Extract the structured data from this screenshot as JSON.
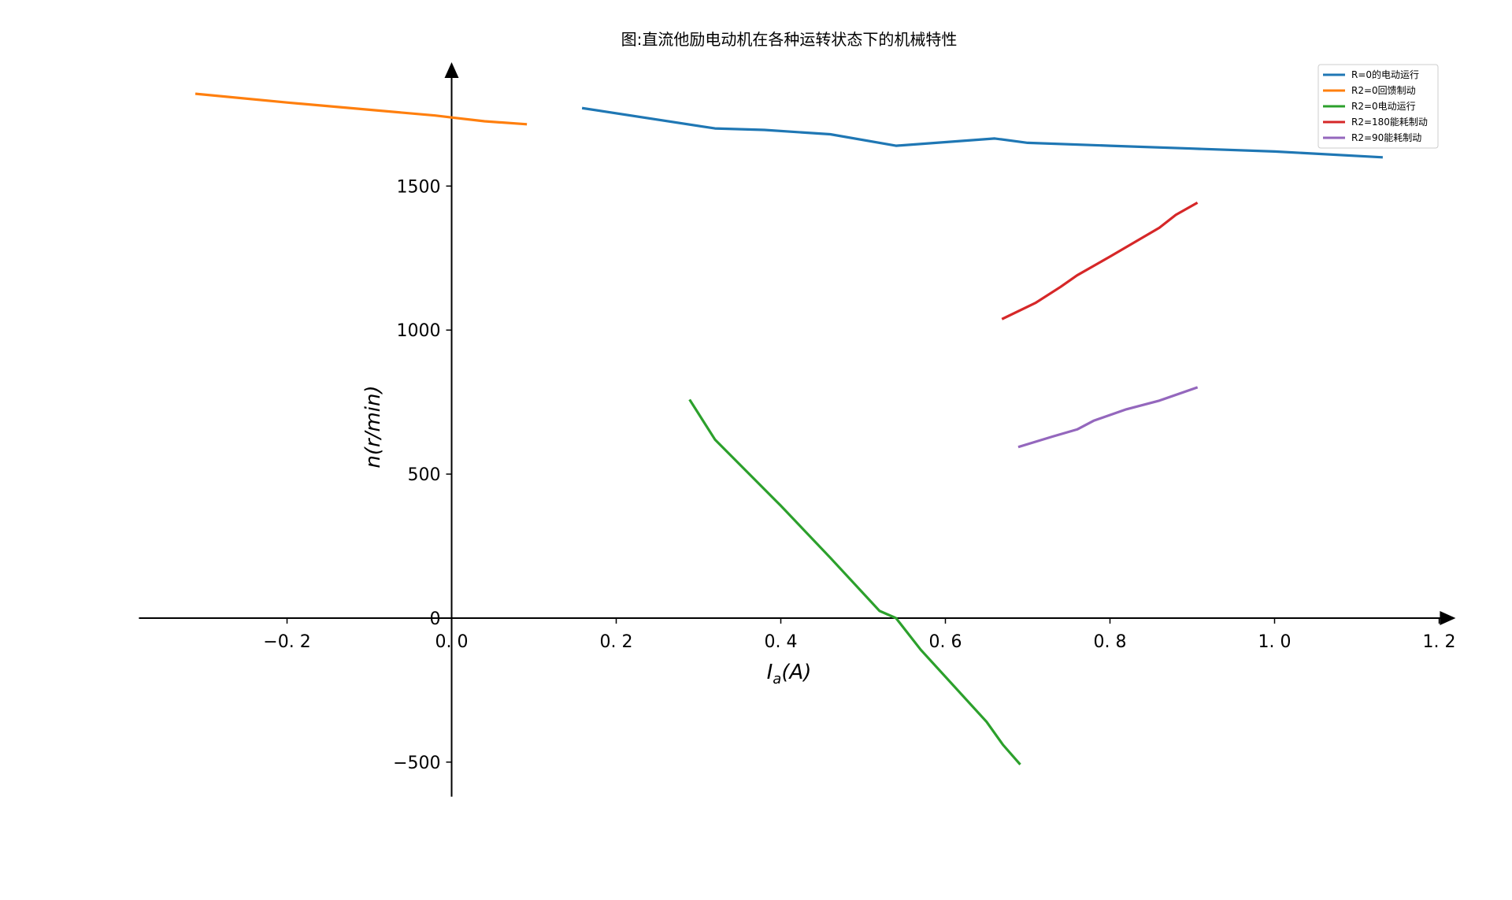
{
  "chart_data": {
    "type": "line",
    "title": "图:直流他励电动机在各种运转状态下的机械特性",
    "xlabel": "I_a(A)",
    "ylabel": "n(r/min)",
    "xlim": [
      -0.38,
      1.22
    ],
    "ylim": [
      -620,
      1930
    ],
    "x_ticks": [
      {
        "value": -0.2,
        "label": "−0. 2"
      },
      {
        "value": 0.0,
        "label": "0. 0"
      },
      {
        "value": 0.2,
        "label": "0. 2"
      },
      {
        "value": 0.4,
        "label": "0. 4"
      },
      {
        "value": 0.6,
        "label": "0. 6"
      },
      {
        "value": 0.8,
        "label": "0. 8"
      },
      {
        "value": 1.0,
        "label": "1. 0"
      },
      {
        "value": 1.2,
        "label": "1. 2"
      }
    ],
    "y_ticks": [
      {
        "value": -500,
        "label": "−500"
      },
      {
        "value": 0,
        "label": "0"
      },
      {
        "value": 500,
        "label": "500"
      },
      {
        "value": 1000,
        "label": "1000"
      },
      {
        "value": 1500,
        "label": "1500"
      }
    ],
    "grid": false,
    "legend_position": "top-right",
    "series": [
      {
        "name": "R=0的电动运行",
        "color": "#1f77b4",
        "x": [
          0.16,
          0.32,
          0.38,
          0.46,
          0.54,
          0.66,
          0.7,
          0.8,
          0.9,
          1.0,
          1.13
        ],
        "y": [
          1770,
          1700,
          1695,
          1680,
          1640,
          1665,
          1650,
          1640,
          1630,
          1620,
          1600
        ]
      },
      {
        "name": "R2=0回馈制动",
        "color": "#ff7f0e",
        "x": [
          -0.31,
          -0.2,
          -0.1,
          -0.02,
          0.0,
          0.04,
          0.09
        ],
        "y": [
          1820,
          1790,
          1765,
          1745,
          1738,
          1725,
          1715
        ]
      },
      {
        "name": "R2=0电动运行",
        "color": "#2ca02c",
        "x": [
          0.29,
          0.32,
          0.4,
          0.46,
          0.52,
          0.54,
          0.57,
          0.65,
          0.67,
          0.69
        ],
        "y": [
          755,
          620,
          390,
          210,
          25,
          0,
          -110,
          -360,
          -440,
          -505
        ]
      },
      {
        "name": "R2=180能耗制动",
        "color": "#d62728",
        "x": [
          0.67,
          0.71,
          0.74,
          0.76,
          0.8,
          0.86,
          0.88,
          0.905
        ],
        "y": [
          1040,
          1095,
          1150,
          1190,
          1255,
          1355,
          1400,
          1440
        ]
      },
      {
        "name": "R2=90能耗制动",
        "color": "#9467bd",
        "x": [
          0.69,
          0.73,
          0.76,
          0.78,
          0.82,
          0.86,
          0.905
        ],
        "y": [
          595,
          630,
          655,
          685,
          725,
          755,
          800
        ]
      }
    ]
  }
}
